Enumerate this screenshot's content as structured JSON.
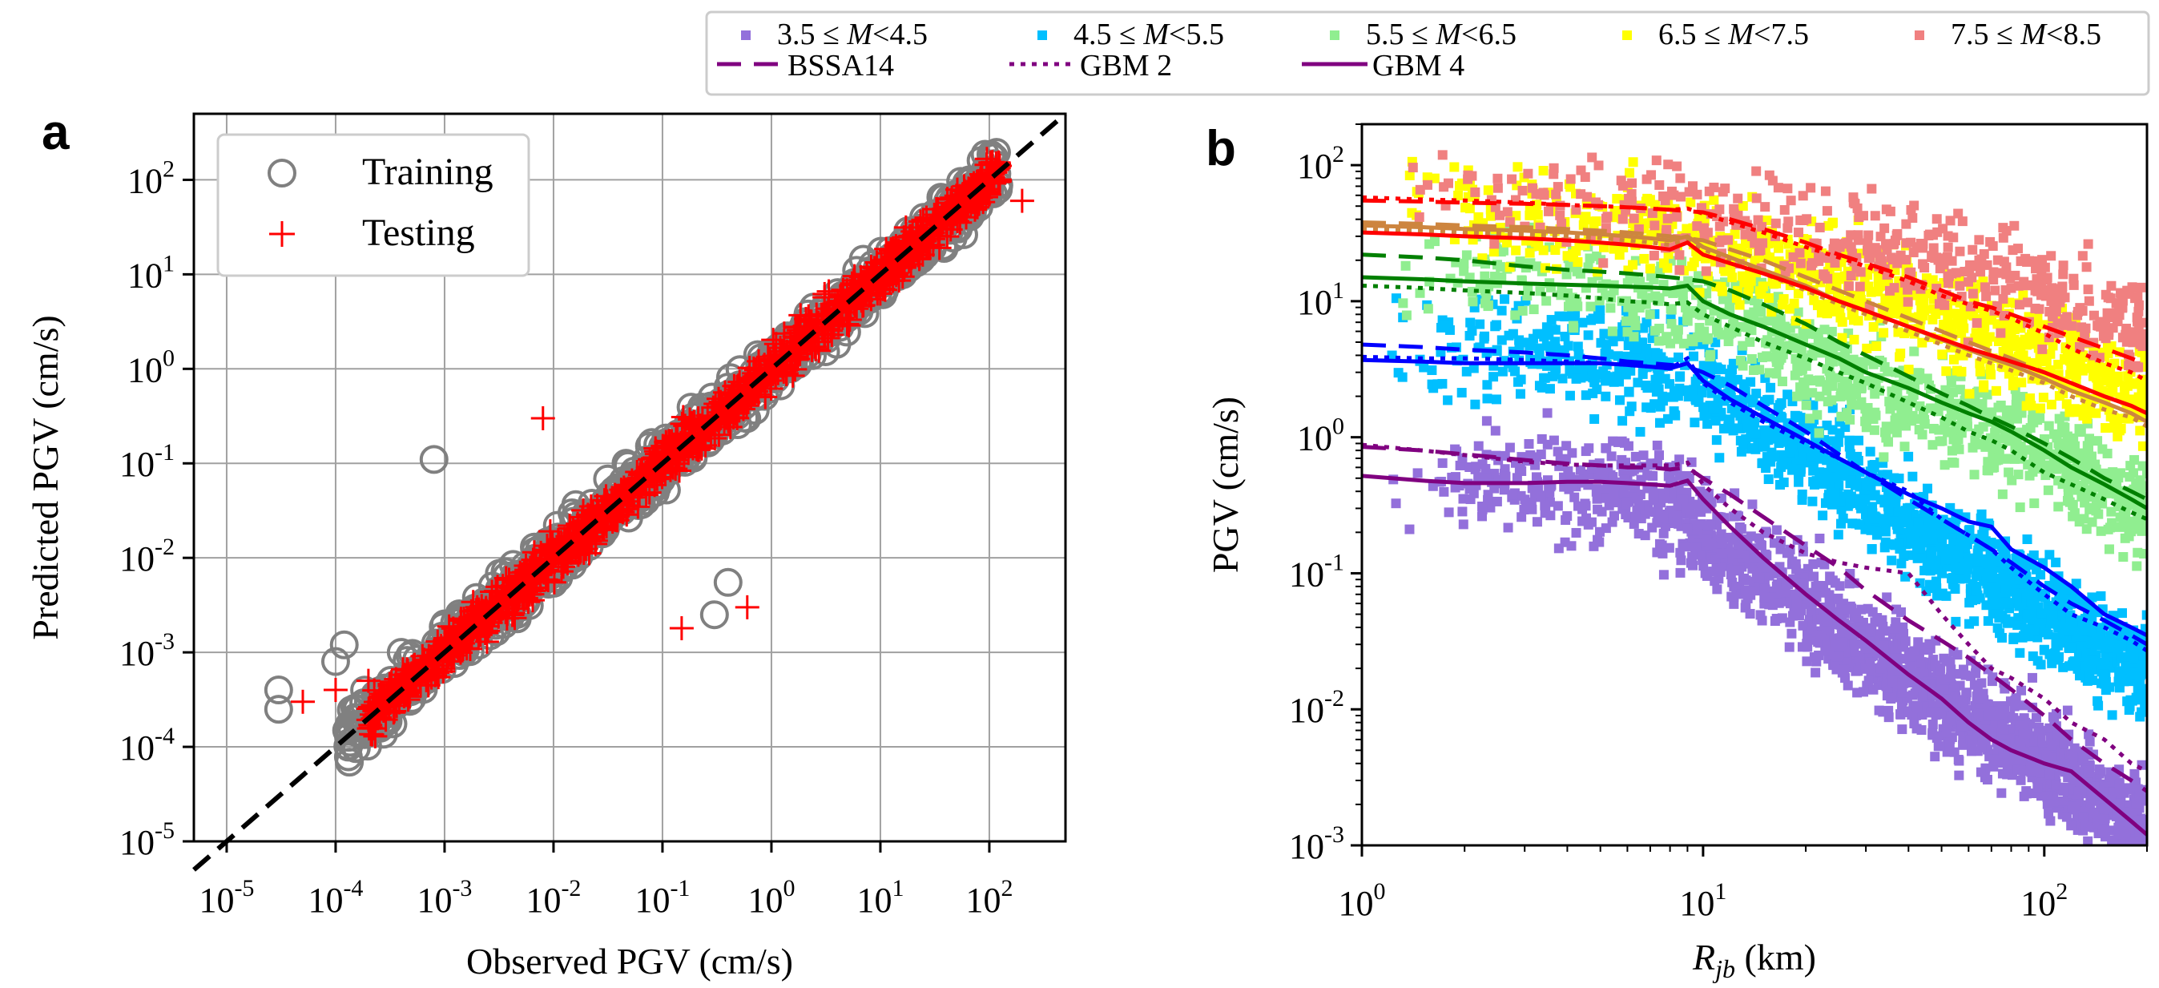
{
  "chart_data": [
    {
      "panel": "a",
      "type": "scatter",
      "xlabel": "Observed PGV (cm/s)",
      "ylabel": "Predicted PGV (cm/s)",
      "xscale": "log",
      "yscale": "log",
      "xlim": [
        5e-06,
        500
      ],
      "ylim": [
        1e-05,
        500
      ],
      "x_ticks": [
        "-5",
        "-4",
        "-3",
        "-2",
        "-1",
        "0",
        "1",
        "2"
      ],
      "y_ticks": [
        "-5",
        "-4",
        "-3",
        "-2",
        "-1",
        "0",
        "1",
        "2"
      ],
      "grid": true,
      "legend_position": "upper-left",
      "reference_line": {
        "style": "dashed",
        "color": "#000000",
        "x": [
          5e-06,
          500
        ],
        "y": [
          5e-06,
          500
        ]
      },
      "series": [
        {
          "name": "Training",
          "marker": "open-circle",
          "color": "#808080",
          "x": [
            3e-05,
            3e-05,
            0.0001,
            0.00012,
            0.00015,
            0.0002,
            0.0003,
            0.0004,
            0.0005,
            0.0007,
            0.001,
            0.0015,
            0.002,
            0.003,
            0.005,
            0.007,
            0.01,
            0.015,
            0.02,
            0.03,
            0.05,
            0.07,
            0.1,
            0.15,
            0.2,
            0.3,
            0.5,
            0.7,
            1,
            1.5,
            2,
            3,
            5,
            7,
            10,
            15,
            20,
            30,
            50,
            70,
            100,
            0.0008,
            0.3,
            0.4
          ],
          "y": [
            0.00025,
            0.0004,
            0.0008,
            0.0012,
            0.0002,
            0.0003,
            0.0002,
            0.001,
            0.0004,
            0.0006,
            0.002,
            0.001,
            0.003,
            0.004,
            0.003,
            0.007,
            0.015,
            0.01,
            0.03,
            0.02,
            0.06,
            0.04,
            0.15,
            0.12,
            0.25,
            0.2,
            0.6,
            0.5,
            1.5,
            1.0,
            3,
            2.5,
            6,
            5,
            12,
            10,
            25,
            20,
            50,
            45,
            80,
            0.11,
            0.0025,
            0.0055
          ]
        },
        {
          "name": "Testing",
          "marker": "plus",
          "color": "#ff0000",
          "x": [
            5e-05,
            0.0001,
            0.0002,
            0.0003,
            0.0005,
            0.0007,
            0.001,
            0.002,
            0.003,
            0.005,
            0.007,
            0.01,
            0.02,
            0.03,
            0.05,
            0.07,
            0.1,
            0.2,
            0.3,
            0.5,
            0.7,
            1,
            2,
            3,
            5,
            7,
            10,
            20,
            30,
            50,
            100,
            200,
            0.008,
            0.15,
            0.6
          ],
          "y": [
            0.0003,
            0.0004,
            0.0005,
            0.0003,
            0.0006,
            0.0008,
            0.0012,
            0.0018,
            0.003,
            0.005,
            0.006,
            0.011,
            0.019,
            0.03,
            0.05,
            0.07,
            0.11,
            0.2,
            0.3,
            0.5,
            0.7,
            1.1,
            2,
            3,
            5,
            7,
            11,
            19,
            30,
            45,
            70,
            60,
            0.3,
            0.0018,
            0.003
          ]
        }
      ]
    },
    {
      "panel": "b",
      "type": "scatter",
      "xlabel_symbol": "R",
      "xlabel_sub": "jb",
      "xlabel_unit": " (km)",
      "ylabel": "PGV (cm/s)",
      "xscale": "log",
      "yscale": "log",
      "xlim": [
        1,
        200
      ],
      "ylim": [
        0.001,
        200
      ],
      "x_ticks": [
        "0",
        "1",
        "2"
      ],
      "y_ticks": [
        "-3",
        "-2",
        "-1",
        "0",
        "1",
        "2"
      ],
      "grid": false,
      "legend_position": "top (above panel)",
      "legend": [
        {
          "label_a": "3.5 ≤ ",
          "label_m": "M",
          "label_b": "<4.5",
          "color": "#9370db",
          "marker": "square"
        },
        {
          "label_a": "4.5 ≤ ",
          "label_m": "M",
          "label_b": "<5.5",
          "color": "#00bfff",
          "marker": "square"
        },
        {
          "label_a": "5.5 ≤ ",
          "label_m": "M",
          "label_b": "<6.5",
          "color": "#90ee90",
          "marker": "square"
        },
        {
          "label_a": "6.5 ≤ ",
          "label_m": "M",
          "label_b": "<7.5",
          "color": "#ffff00",
          "marker": "square"
        },
        {
          "label_a": "7.5 ≤ ",
          "label_m": "M",
          "label_b": "<8.5",
          "color": "#f08080",
          "marker": "square"
        },
        {
          "label": "BSSA14",
          "style": "dashed",
          "color": "#800080"
        },
        {
          "label": "GBM 2",
          "style": "dotted",
          "color": "#800080"
        },
        {
          "label": "GBM 4",
          "style": "solid",
          "color": "#800080"
        }
      ],
      "scatter_bands": [
        {
          "magnitude_bin": "3.5-4.5",
          "color": "#9370db",
          "x": [
            1.5,
            3,
            6,
            8,
            10,
            15,
            20,
            30,
            50,
            80,
            120,
            180
          ],
          "y_center": [
            0.5,
            0.45,
            0.4,
            0.3,
            0.2,
            0.1,
            0.06,
            0.03,
            0.012,
            0.006,
            0.003,
            0.0015
          ]
        },
        {
          "magnitude_bin": "4.5-5.5",
          "color": "#00bfff",
          "x": [
            1.5,
            3,
            6,
            10,
            15,
            20,
            30,
            50,
            80,
            120,
            180
          ],
          "y_center": [
            5,
            4.5,
            3.5,
            2.5,
            1.2,
            0.8,
            0.4,
            0.15,
            0.08,
            0.04,
            0.02
          ]
        },
        {
          "magnitude_bin": "5.5-6.5",
          "color": "#90ee90",
          "x": [
            1.5,
            3,
            6,
            10,
            15,
            20,
            30,
            50,
            80,
            120,
            180
          ],
          "y_center": [
            15,
            14,
            12,
            9,
            6,
            4,
            2.5,
            1.5,
            1,
            0.6,
            0.3
          ]
        },
        {
          "magnitude_bin": "6.5-7.5",
          "color": "#ffff00",
          "x": [
            1.5,
            3,
            6,
            10,
            20,
            30,
            50,
            80,
            120,
            180
          ],
          "y_center": [
            50,
            40,
            35,
            28,
            18,
            12,
            8,
            5,
            3,
            2
          ]
        },
        {
          "magnitude_bin": "7.5-8.5",
          "color": "#f08080",
          "x": [
            1.5,
            3,
            6,
            10,
            20,
            30,
            50,
            80,
            120,
            180
          ],
          "y_center": [
            70,
            60,
            50,
            40,
            30,
            25,
            20,
            15,
            10,
            7
          ]
        }
      ],
      "model_curves": [
        {
          "magnitude": "3.5-4.5",
          "color": "#800080",
          "x": [
            1,
            1.5,
            2,
            3,
            4,
            5,
            6,
            7,
            8,
            9,
            10,
            12,
            15,
            20,
            25,
            30,
            40,
            50,
            60,
            70,
            80,
            100,
            120,
            150,
            180,
            200
          ],
          "bssa14": [
            0.85,
            0.8,
            0.75,
            0.68,
            0.64,
            0.62,
            0.6,
            0.6,
            0.58,
            0.6,
            0.5,
            0.38,
            0.26,
            0.16,
            0.11,
            0.075,
            0.045,
            0.032,
            0.024,
            0.018,
            0.014,
            0.009,
            0.006,
            0.004,
            0.003,
            0.0025
          ],
          "gbm2": [
            0.88,
            0.8,
            0.74,
            0.66,
            0.63,
            0.62,
            0.62,
            0.62,
            0.62,
            0.65,
            0.45,
            0.3,
            0.2,
            0.14,
            0.12,
            0.11,
            0.1,
            0.05,
            0.03,
            0.02,
            0.017,
            0.012,
            0.008,
            0.006,
            0.004,
            0.0035
          ],
          "gbm4": [
            0.52,
            0.48,
            0.46,
            0.46,
            0.47,
            0.47,
            0.46,
            0.45,
            0.44,
            0.48,
            0.35,
            0.22,
            0.13,
            0.07,
            0.045,
            0.032,
            0.018,
            0.012,
            0.008,
            0.006,
            0.005,
            0.004,
            0.0035,
            0.0022,
            0.0015,
            0.0012
          ]
        },
        {
          "magnitude": "4.5-5.5",
          "color": "#0000ff",
          "x": [
            1,
            1.5,
            2,
            3,
            4,
            5,
            6,
            7,
            8,
            9,
            10,
            12,
            15,
            20,
            25,
            30,
            40,
            50,
            60,
            70,
            80,
            100,
            120,
            150,
            180,
            200
          ],
          "bssa14": [
            4.8,
            4.6,
            4.4,
            4.2,
            4.0,
            3.8,
            3.6,
            3.5,
            3.4,
            3.3,
            3.0,
            2.4,
            1.7,
            1.1,
            0.75,
            0.55,
            0.35,
            0.25,
            0.19,
            0.15,
            0.12,
            0.08,
            0.06,
            0.045,
            0.035,
            0.03
          ],
          "gbm2": [
            3.9,
            3.8,
            3.8,
            3.7,
            3.6,
            3.5,
            3.4,
            3.3,
            3.2,
            3.8,
            2.5,
            1.8,
            1.3,
            0.9,
            0.7,
            0.55,
            0.4,
            0.25,
            0.19,
            0.15,
            0.11,
            0.07,
            0.05,
            0.04,
            0.032,
            0.027
          ],
          "gbm4": [
            3.7,
            3.6,
            3.5,
            3.5,
            3.5,
            3.5,
            3.4,
            3.3,
            3.2,
            3.5,
            2.6,
            1.9,
            1.4,
            0.95,
            0.7,
            0.55,
            0.38,
            0.3,
            0.24,
            0.22,
            0.15,
            0.11,
            0.08,
            0.05,
            0.04,
            0.035
          ]
        },
        {
          "magnitude": "5.5-6.5",
          "color": "#008000",
          "x": [
            1,
            1.5,
            2,
            3,
            4,
            5,
            6,
            7,
            8,
            9,
            10,
            12,
            15,
            20,
            25,
            30,
            40,
            50,
            60,
            70,
            80,
            100,
            120,
            150,
            180,
            200
          ],
          "bssa14": [
            22,
            21,
            20,
            18,
            17,
            16.5,
            16,
            15.5,
            15,
            14.5,
            14,
            12,
            9.5,
            6.8,
            5,
            4,
            2.8,
            2.1,
            1.7,
            1.4,
            1.2,
            0.9,
            0.7,
            0.5,
            0.4,
            0.35
          ],
          "gbm2": [
            13,
            12.5,
            12,
            11.5,
            11,
            10.5,
            10,
            9.8,
            9.5,
            9.8,
            8,
            6.5,
            5,
            3.8,
            3,
            2.5,
            1.8,
            1.4,
            1.1,
            0.95,
            0.8,
            0.55,
            0.45,
            0.35,
            0.28,
            0.25
          ],
          "gbm4": [
            15,
            14.5,
            14,
            13.5,
            13.2,
            13,
            12.8,
            12.6,
            12.4,
            13,
            10,
            8,
            6.5,
            4.8,
            3.8,
            3,
            2.3,
            1.8,
            1.5,
            1.3,
            1.1,
            0.8,
            0.6,
            0.45,
            0.35,
            0.3
          ]
        },
        {
          "magnitude": "6.5-7.5",
          "color": "#cd853f",
          "x": [
            1,
            1.5,
            2,
            3,
            4,
            5,
            6,
            7,
            8,
            9,
            10,
            12,
            15,
            20,
            25,
            30,
            40,
            50,
            60,
            70,
            80,
            100,
            120,
            150,
            180,
            200
          ],
          "bssa14": [
            38,
            37,
            36,
            35,
            34,
            33,
            32,
            31,
            30,
            29,
            28,
            24,
            20,
            15,
            12,
            10,
            7.5,
            6,
            5,
            4.3,
            3.8,
            3,
            2.5,
            2,
            1.7,
            1.5
          ],
          "gbm2": [
            34,
            33,
            32,
            31,
            30,
            29,
            28,
            27,
            26,
            28,
            24,
            20,
            16,
            12,
            9.5,
            8,
            6,
            4.8,
            4,
            3.5,
            3.1,
            2.5,
            2,
            1.6,
            1.4,
            1.2
          ],
          "gbm4": [
            36,
            35,
            34,
            33,
            32,
            31,
            30,
            29,
            28,
            30,
            25,
            21,
            17,
            13,
            10,
            8.5,
            6.5,
            5.2,
            4.4,
            3.8,
            3.4,
            2.7,
            2.2,
            1.8,
            1.5,
            1.3
          ]
        },
        {
          "magnitude": "7.5-8.5",
          "color": "#ff0000",
          "x": [
            1,
            1.5,
            2,
            3,
            4,
            5,
            6,
            7,
            8,
            9,
            10,
            12,
            15,
            20,
            25,
            30,
            40,
            50,
            60,
            70,
            80,
            100,
            120,
            150,
            180,
            200
          ],
          "bssa14": [
            55,
            54,
            53,
            52,
            51,
            50,
            49,
            48,
            47,
            46,
            45,
            40,
            34,
            27,
            22,
            19,
            15,
            12,
            10,
            9,
            8,
            6.5,
            5.5,
            4.5,
            3.8,
            3.4
          ],
          "gbm2": [
            58,
            56,
            55,
            53,
            51,
            50,
            49,
            48,
            47,
            48,
            44,
            38,
            32,
            25,
            21,
            18,
            14,
            11,
            9.5,
            8.5,
            7.5,
            5.8,
            4.5,
            3.5,
            3,
            2.6
          ],
          "gbm4": [
            32,
            31,
            30,
            29,
            28,
            27,
            26,
            25,
            24,
            27,
            22,
            19,
            16,
            12.5,
            10,
            8.5,
            6.5,
            5.3,
            4.5,
            4,
            3.6,
            3,
            2.5,
            2,
            1.7,
            1.5
          ]
        }
      ]
    }
  ],
  "panel_a_legend": [
    {
      "label": "Training",
      "marker": "open-circle",
      "color": "#808080"
    },
    {
      "label": "Testing",
      "marker": "plus",
      "color": "#ff0000"
    }
  ]
}
